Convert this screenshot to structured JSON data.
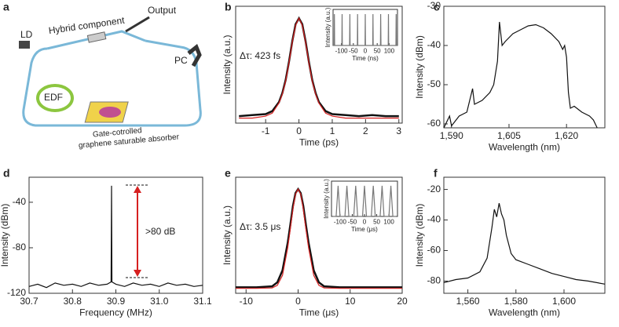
{
  "diagram": {
    "label": "a",
    "ld": "LD",
    "component": "Hybrid component",
    "output": "Output",
    "pc": "PC",
    "edf": "EDF",
    "absorber": [
      "Gate-cotrolled",
      "graphene saturable absorber"
    ]
  },
  "chart_data": [
    {
      "type": "line",
      "label": "b",
      "xlabel": "Time (ps)",
      "ylabel": "Intensity (a.u.)",
      "annotation": "Δτ: 423 fs",
      "x": [
        -1.8,
        -1.4,
        -1.0,
        -0.8,
        -0.6,
        -0.5,
        -0.4,
        -0.3,
        -0.2,
        -0.1,
        0,
        0.1,
        0.2,
        0.3,
        0.4,
        0.5,
        0.6,
        0.8,
        1.0,
        1.4,
        1.8,
        2.2,
        2.6,
        3.0
      ],
      "xlim": [
        -1.9,
        3.1
      ],
      "xticks": [
        -1,
        0,
        1,
        2,
        3
      ],
      "ylim": [
        -0.05,
        1.12
      ],
      "series": [
        {
          "color": "#111111",
          "values": [
            0.02,
            0.03,
            0.04,
            0.07,
            0.16,
            0.25,
            0.38,
            0.56,
            0.77,
            0.94,
            1,
            0.94,
            0.77,
            0.56,
            0.38,
            0.25,
            0.16,
            0.07,
            0.04,
            0.03,
            0.02,
            0.03,
            0.02,
            0.02
          ]
        },
        {
          "color": "#d62020",
          "values": [
            0,
            0,
            0.02,
            0.05,
            0.15,
            0.24,
            0.37,
            0.55,
            0.76,
            0.93,
            1,
            0.93,
            0.76,
            0.55,
            0.37,
            0.24,
            0.15,
            0.05,
            0.02,
            0,
            0,
            0,
            0,
            0
          ]
        }
      ]
    },
    {
      "type": "line",
      "xlabel": "Time (ns)",
      "ylabel": "Intensity (a.u.)",
      "x": [
        -135,
        -130.5,
        -129.5,
        -128.5,
        -98.1,
        -97.1,
        -96.1,
        -65.7,
        -64.7,
        -63.7,
        -33.4,
        -32.4,
        -31.4,
        -1,
        0,
        1,
        31.4,
        32.4,
        33.4,
        63.7,
        64.7,
        65.7,
        96.1,
        97.1,
        98.1,
        128.5,
        129.5,
        130.5,
        135
      ],
      "xlim": [
        -135,
        135
      ],
      "xticks": [
        -100,
        -50,
        0,
        50,
        100
      ],
      "ylim": [
        0,
        1.15
      ],
      "series": [
        {
          "color": "#777777",
          "values": [
            0,
            0,
            1,
            0,
            0,
            1,
            0,
            0,
            1,
            0,
            0,
            1,
            0,
            0,
            1,
            0,
            0,
            1,
            0,
            0,
            1,
            0,
            0,
            1,
            0,
            0,
            1,
            0,
            0
          ]
        }
      ]
    },
    {
      "type": "line",
      "label": "c",
      "xlabel": "Wavelength (nm)",
      "ylabel": "Intensity (dBm)",
      "x": [
        1588,
        1589.5,
        1590,
        1592,
        1594,
        1595.5,
        1596,
        1598,
        1600,
        1601,
        1602,
        1602.5,
        1603.2,
        1604,
        1606,
        1608,
        1610,
        1612,
        1614,
        1616,
        1618,
        1619,
        1619.5,
        1620,
        1620.5,
        1621,
        1622,
        1624,
        1626,
        1627,
        1628
      ],
      "xlim": [
        1588,
        1630
      ],
      "xticks": [
        {
          "value": 1590,
          "label": "1,590"
        },
        {
          "value": 1605,
          "label": "1,605"
        },
        {
          "value": 1620,
          "label": "1,620"
        }
      ],
      "ylim": [
        -61,
        -30
      ],
      "yticks": [
        -60,
        -50,
        -40,
        -30
      ],
      "series": [
        {
          "color": "#111111",
          "values": [
            -61,
            -58,
            -60.5,
            -58,
            -57,
            -51,
            -55,
            -54,
            -52,
            -50,
            -44,
            -34,
            -40,
            -39,
            -37,
            -36,
            -35,
            -34.7,
            -35.5,
            -37,
            -39,
            -41,
            -40,
            -43,
            -52,
            -56,
            -55.5,
            -57,
            -58,
            -59,
            -61
          ]
        }
      ]
    },
    {
      "type": "line",
      "label": "d",
      "xlabel": "Frequency (MHz)",
      "ylabel": "Intensity (dBm)",
      "annotation": ">80 dB",
      "x": [
        30.7,
        30.72,
        30.74,
        30.76,
        30.78,
        30.8,
        30.82,
        30.84,
        30.86,
        30.88,
        30.889,
        30.89,
        30.891,
        30.9,
        30.92,
        30.94,
        30.96,
        30.98,
        31.0,
        31.02,
        31.04,
        31.06,
        31.08,
        31.1
      ],
      "xlim": [
        30.7,
        31.1
      ],
      "xticks": [
        30.7,
        30.8,
        30.9,
        {
          "value": 31,
          "label": "31.0"
        },
        31.1
      ],
      "ylim": [
        -120,
        -18
      ],
      "yticks": [
        -120,
        -80,
        -40
      ],
      "series": [
        {
          "color": "#111111",
          "values": [
            -114,
            -112,
            -115,
            -111,
            -113,
            -112,
            -114,
            -111,
            -113,
            -112,
            -110,
            -25.5,
            -110,
            -112,
            -114,
            -111,
            -113,
            -112,
            -114,
            -111,
            -113,
            -112,
            -114,
            -113
          ]
        }
      ]
    },
    {
      "type": "line",
      "label": "e",
      "xlabel": "Time (μs)",
      "ylabel": "Intensity (a.u.)",
      "annotation": "Δτ: 3.5 μs",
      "x": [
        -12,
        -8,
        -5,
        -4,
        -3,
        -2,
        -1.5,
        -1,
        -0.5,
        0,
        0.5,
        1,
        1.5,
        2,
        3,
        4,
        5,
        8,
        12,
        16,
        20
      ],
      "xlim": [
        -12,
        20
      ],
      "xticks": [
        -10,
        0,
        10,
        20
      ],
      "ylim": [
        -0.05,
        1.12
      ],
      "series": [
        {
          "color": "#111111",
          "values": [
            0.01,
            0.01,
            0.02,
            0.06,
            0.18,
            0.46,
            0.64,
            0.83,
            0.96,
            1,
            0.96,
            0.83,
            0.64,
            0.46,
            0.18,
            0.06,
            0.02,
            0.01,
            0.01,
            0.01,
            0.01
          ]
        },
        {
          "color": "#d62020",
          "values": [
            0,
            0,
            0.004,
            0.03,
            0.13,
            0.41,
            0.6,
            0.8,
            0.95,
            1,
            0.95,
            0.8,
            0.6,
            0.41,
            0.13,
            0.03,
            0.004,
            0,
            0,
            0,
            0
          ]
        }
      ]
    },
    {
      "type": "line",
      "xlabel": "Time (μs)",
      "ylabel": "Intensity (a.u.)",
      "x": [
        -130,
        -116,
        -108,
        -100,
        -80,
        -72,
        -64,
        -44,
        -36,
        -28,
        -8,
        0,
        8,
        28,
        36,
        44,
        64,
        72,
        80,
        100,
        108,
        116,
        130
      ],
      "xlim": [
        -135,
        135
      ],
      "xticks": [
        -100,
        -50,
        0,
        50,
        100
      ],
      "ylim": [
        0,
        1.15
      ],
      "series": [
        {
          "color": "#777777",
          "values": [
            0,
            0,
            1,
            0,
            0,
            1,
            0,
            0,
            1,
            0,
            0,
            1,
            0,
            0,
            1,
            0,
            0,
            1,
            0,
            0,
            1,
            0,
            0
          ]
        }
      ]
    },
    {
      "type": "line",
      "label": "f",
      "xlabel": "Wavelength (nm)",
      "ylabel": "Intensity (dBm)",
      "x": [
        1550,
        1555,
        1560,
        1565,
        1568,
        1570,
        1571,
        1572,
        1573,
        1574,
        1575,
        1576,
        1578,
        1580,
        1585,
        1590,
        1595,
        1600,
        1605,
        1610,
        1617
      ],
      "xlim": [
        1550,
        1617
      ],
      "xticks": [
        {
          "value": 1560,
          "label": "1,560"
        },
        {
          "value": 1580,
          "label": "1,580"
        },
        {
          "value": 1600,
          "label": "1,600"
        }
      ],
      "ylim": [
        -88,
        -12
      ],
      "yticks": [
        -80,
        -60,
        -40,
        -20
      ],
      "series": [
        {
          "color": "#111111",
          "values": [
            -81,
            -79,
            -78,
            -74,
            -65,
            -45,
            -33,
            -38,
            -29,
            -36,
            -40,
            -50,
            -62,
            -66,
            -69,
            -72,
            -75,
            -77,
            -79,
            -80,
            -82
          ]
        }
      ]
    }
  ]
}
